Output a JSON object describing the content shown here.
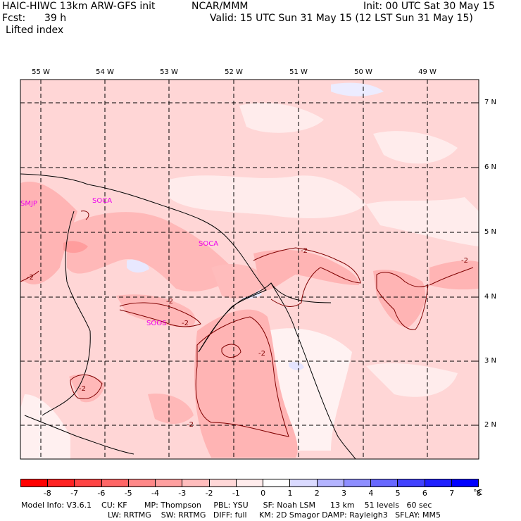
{
  "header": {
    "model": "HAIC-HIWC 13km ARW-GFS init",
    "center": "NCAR/MMM",
    "init": "Init: 00 UTC Sat 30 May 15",
    "fcst_label": "Fcst:",
    "fcst_value": "39 h",
    "valid": "Valid: 15 UTC Sun 31 May 15 (12 LST Sun 31 May 15)",
    "field": "Lifted index"
  },
  "map": {
    "lon_labels": [
      "55 W",
      "54 W",
      "53 W",
      "52 W",
      "51 W",
      "50 W",
      "49 W"
    ],
    "lat_labels": [
      "7 N",
      "6 N",
      "5 N",
      "4 N",
      "3 N",
      "2 N"
    ],
    "stations": [
      "SMJP",
      "SOCA",
      "SOCA",
      "SOOS"
    ],
    "contour_labels": [
      "-2",
      "-2",
      "-2",
      "-2",
      "-2",
      "-2",
      "-2",
      "-2"
    ]
  },
  "colorbar": {
    "unit": "°C",
    "values": [
      "-8",
      "-7",
      "-6",
      "-5",
      "-4",
      "-3",
      "-2",
      "-1",
      "0",
      "1",
      "2",
      "3",
      "4",
      "5",
      "6",
      "7",
      "8"
    ],
    "colors": [
      "#ff0000",
      "#ff2222",
      "#ff4444",
      "#ff6666",
      "#ff8888",
      "#ffa0a0",
      "#ffbdbd",
      "#ffd8d8",
      "#ffecec",
      "#ffffff",
      "#dadaff",
      "#b4b4ff",
      "#8e8eff",
      "#6868ff",
      "#4242ff",
      "#2020ff",
      "#0000ff"
    ]
  },
  "footer": {
    "line1": "Model Info: V3.6.1    CU: KF       MP: Thompson     PBL: YSU      SF: Noah LSM      13 km    51 levels   60 sec",
    "line2": "LW: RRTMG    SW: RRTMG   DIFF: full     KM: 2D Smagor DAMP: Rayleigh3   SFLAY: MM5"
  }
}
